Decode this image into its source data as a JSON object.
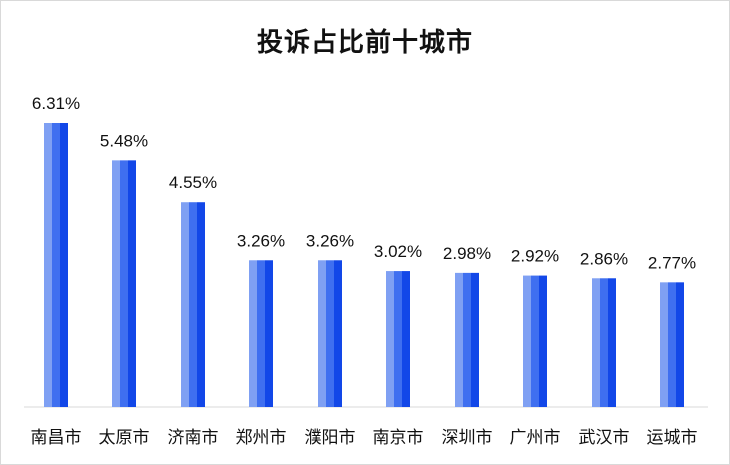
{
  "chart_data": {
    "type": "bar",
    "title": "投诉占比前十城市",
    "xlabel": "",
    "ylabel": "",
    "categories": [
      "南昌市",
      "太原市",
      "济南市",
      "郑州市",
      "濮阳市",
      "南京市",
      "深圳市",
      "广州市",
      "武汉市",
      "运城市"
    ],
    "values": [
      6.31,
      5.48,
      4.55,
      3.26,
      3.26,
      3.02,
      2.98,
      2.92,
      2.86,
      2.77
    ],
    "value_labels": [
      "6.31%",
      "5.48%",
      "4.55%",
      "3.26%",
      "3.26%",
      "3.02%",
      "2.98%",
      "2.92%",
      "2.86%",
      "2.77%"
    ],
    "ylim": [
      0,
      6.31
    ],
    "unit": "%",
    "grid": false,
    "legend": "none",
    "colors": {
      "bar_light": "#7fa0f3",
      "bar_mid": "#3f6ff0",
      "bar_dark": "#1247e8",
      "axis": "#d9d9d9",
      "text": "#111111"
    }
  }
}
